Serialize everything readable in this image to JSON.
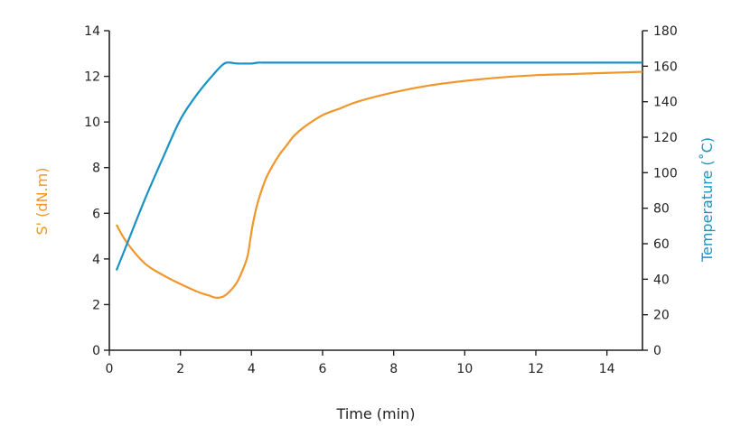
{
  "chart_data": {
    "type": "line",
    "xlabel": "Time (min)",
    "ylabel_left": "S' (dN.m)",
    "ylabel_right": "Temperature (˚C)",
    "xlim": [
      0,
      15
    ],
    "ylim_left": [
      0,
      14
    ],
    "ylim_right": [
      0,
      180
    ],
    "x_ticks": [
      0,
      2,
      4,
      6,
      8,
      10,
      12,
      14
    ],
    "y_ticks_left": [
      0,
      2,
      4,
      6,
      8,
      10,
      12,
      14
    ],
    "y_ticks_right": [
      0,
      20,
      40,
      60,
      80,
      100,
      120,
      140,
      160,
      180
    ],
    "grid": false,
    "colors": {
      "s_prime": "#f0962a",
      "temperature": "#1a92c4"
    },
    "series": [
      {
        "axis": "left",
        "x": [
          0.2,
          0.5,
          1.0,
          1.5,
          2.0,
          2.5,
          2.8,
          3.0,
          3.2,
          3.4,
          3.6,
          3.8,
          3.9,
          4.0,
          4.1,
          4.2,
          4.4,
          4.6,
          4.8,
          5.0,
          5.2,
          5.5,
          6.0,
          6.5,
          7.0,
          8.0,
          9.0,
          10.0,
          11.0,
          12.0,
          13.0,
          14.0,
          15.0
        ],
        "y": [
          5.5,
          4.7,
          3.8,
          3.3,
          2.9,
          2.55,
          2.4,
          2.3,
          2.35,
          2.6,
          3.0,
          3.7,
          4.2,
          5.2,
          6.0,
          6.6,
          7.5,
          8.1,
          8.6,
          9.0,
          9.4,
          9.8,
          10.3,
          10.6,
          10.9,
          11.3,
          11.6,
          11.8,
          11.95,
          12.05,
          12.1,
          12.15,
          12.2
        ]
      },
      {
        "axis": "right",
        "x": [
          0.2,
          0.5,
          1.0,
          1.5,
          2.0,
          2.5,
          3.0,
          3.2,
          3.3,
          3.4,
          3.6,
          3.8,
          4.0,
          4.2,
          4.4,
          5.0,
          8.0,
          12.0,
          15.0
        ],
        "y": [
          45,
          60,
          85,
          108,
          130,
          145,
          157,
          161,
          162,
          162,
          161.5,
          161.5,
          161.5,
          162,
          162,
          162,
          162,
          162,
          162
        ]
      }
    ]
  }
}
